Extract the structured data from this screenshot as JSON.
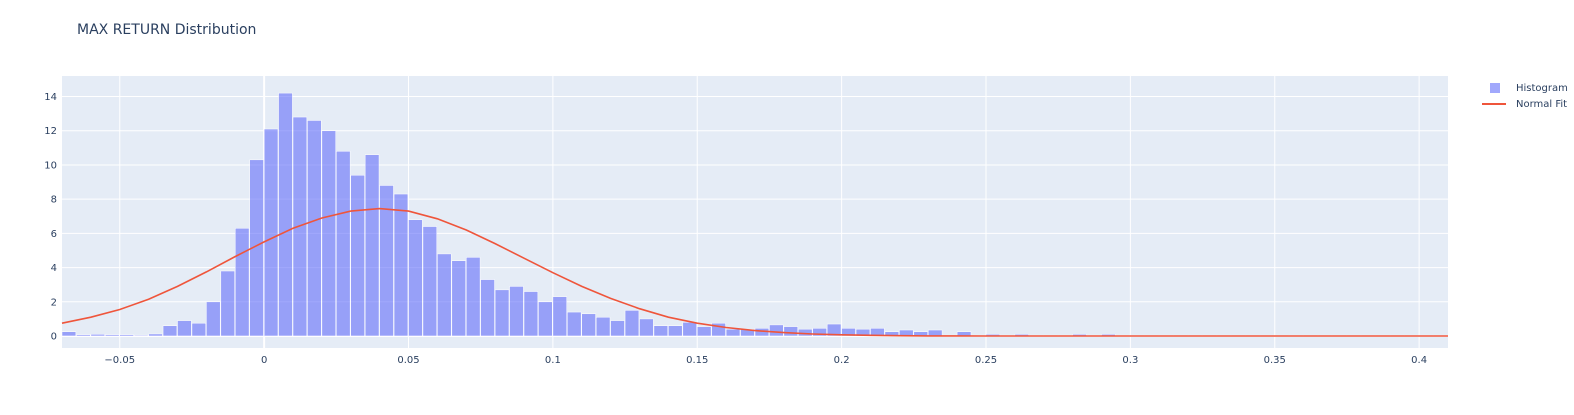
{
  "chart_data": {
    "type": "bar",
    "title": "MAX RETURN Distribution",
    "xlim": [
      -0.07,
      0.41
    ],
    "ylim": [
      -0.7,
      15.2
    ],
    "x_ticks": [
      -0.05,
      0,
      0.05,
      0.1,
      0.15,
      0.2,
      0.25,
      0.3,
      0.35,
      0.4
    ],
    "x_tick_labels": [
      "−0.05",
      "0",
      "0.05",
      "0.1",
      "0.15",
      "0.2",
      "0.25",
      "0.3",
      "0.35",
      "0.4"
    ],
    "y_ticks": [
      0,
      2,
      4,
      6,
      8,
      10,
      12,
      14
    ],
    "y_tick_labels": [
      "0",
      "2",
      "4",
      "6",
      "8",
      "10",
      "12",
      "14"
    ],
    "grid": true,
    "legend_position": "top-right",
    "series": [
      {
        "name": "Histogram",
        "type": "histogram",
        "color": "#636efa",
        "opacity": 0.6,
        "bin_start": -0.07,
        "bin_width": 0.005,
        "values": [
          0.25,
          0.08,
          0.1,
          0.08,
          0.08,
          0.05,
          0.12,
          0.6,
          0.9,
          0.75,
          2.0,
          3.8,
          6.3,
          10.3,
          12.1,
          14.2,
          12.8,
          12.6,
          12.0,
          10.8,
          9.4,
          10.6,
          8.8,
          8.3,
          6.8,
          6.4,
          4.8,
          4.4,
          4.6,
          3.3,
          2.7,
          2.9,
          2.6,
          2.0,
          2.3,
          1.4,
          1.3,
          1.1,
          0.9,
          1.5,
          1.0,
          0.6,
          0.6,
          0.8,
          0.55,
          0.75,
          0.4,
          0.4,
          0.45,
          0.65,
          0.55,
          0.4,
          0.45,
          0.7,
          0.45,
          0.4,
          0.45,
          0.25,
          0.35,
          0.25,
          0.35,
          0.05,
          0.25,
          0.05,
          0.1,
          0.05,
          0.1,
          0.05,
          0.05,
          0.05,
          0.1,
          0.05,
          0.1,
          0.05,
          0.05,
          0.05,
          0.05,
          0.05,
          0.05,
          0.05,
          0.05,
          0.05,
          0.05,
          0.05,
          0.05,
          0.05,
          0.05,
          0.05,
          0.05,
          0.05,
          0.05,
          0.05,
          0.05,
          0.05,
          0.05,
          0.05
        ]
      },
      {
        "name": "Normal Fit",
        "type": "line",
        "color": "#ef553b",
        "x": [
          -0.07,
          -0.06,
          -0.05,
          -0.04,
          -0.03,
          -0.02,
          -0.01,
          0.0,
          0.01,
          0.02,
          0.03,
          0.04,
          0.05,
          0.06,
          0.07,
          0.08,
          0.09,
          0.1,
          0.11,
          0.12,
          0.13,
          0.14,
          0.15,
          0.16,
          0.17,
          0.18,
          0.19,
          0.2,
          0.21,
          0.22,
          0.23,
          0.24,
          0.25,
          0.27,
          0.3,
          0.35,
          0.41
        ],
        "y": [
          0.75,
          1.1,
          1.55,
          2.15,
          2.9,
          3.75,
          4.65,
          5.5,
          6.3,
          6.9,
          7.3,
          7.45,
          7.3,
          6.85,
          6.2,
          5.4,
          4.55,
          3.7,
          2.9,
          2.2,
          1.6,
          1.1,
          0.75,
          0.5,
          0.32,
          0.2,
          0.12,
          0.07,
          0.04,
          0.02,
          0.01,
          0.005,
          0.003,
          0.001,
          0.0,
          0.0,
          0.0
        ]
      }
    ]
  }
}
